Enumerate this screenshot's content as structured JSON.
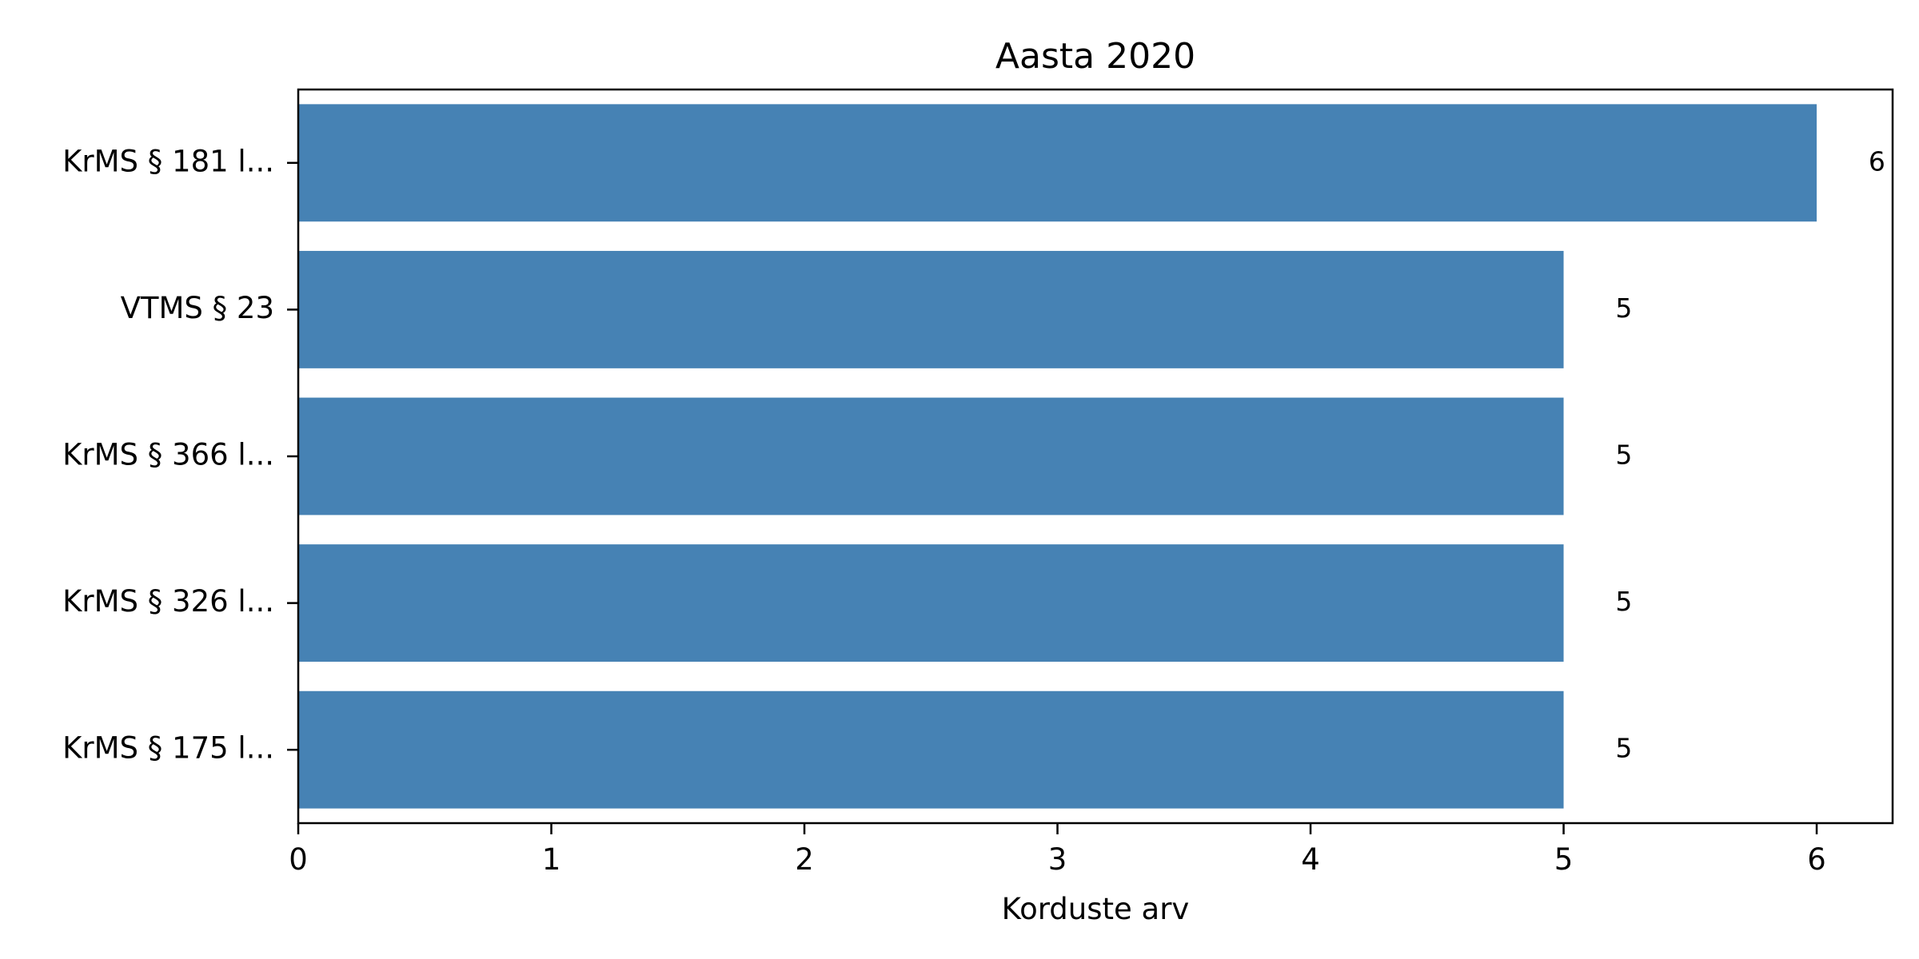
{
  "chart_data": {
    "type": "bar",
    "orientation": "horizontal",
    "title": "Aasta 2020",
    "xlabel": "Korduste arv",
    "ylabel": "",
    "categories": [
      "KrMS § 181 l...",
      "VTMS § 23",
      "KrMS § 366 l...",
      "KrMS § 326 l...",
      "KrMS § 175 l..."
    ],
    "values": [
      6,
      5,
      5,
      5,
      5
    ],
    "data_labels": [
      "6",
      "5",
      "5",
      "5",
      "5"
    ],
    "xlim": [
      0,
      6.3
    ],
    "xticks": [
      0,
      1,
      2,
      3,
      4,
      5,
      6
    ],
    "xtick_labels": [
      "0",
      "1",
      "2",
      "3",
      "4",
      "5",
      "6"
    ],
    "bar_color": "#4682b4",
    "grid": false,
    "legend": "none"
  }
}
